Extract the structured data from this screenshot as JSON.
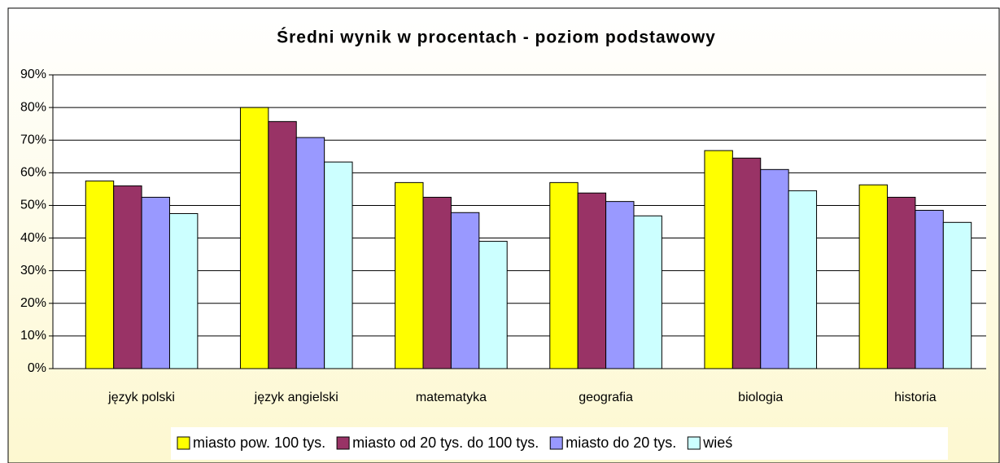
{
  "chart_data": {
    "type": "bar",
    "title": "Średni wynik w procentach - poziom podstawowy",
    "categories": [
      "język polski",
      "język angielski",
      "matematyka",
      "geografia",
      "biologia",
      "historia"
    ],
    "series": [
      {
        "name": "miasto pow. 100 tys.",
        "color": "#ffff00",
        "values": [
          57.5,
          80,
          57,
          57,
          66.8,
          56.3
        ]
      },
      {
        "name": "miasto od 20 tys. do 100 tys.",
        "color": "#993366",
        "values": [
          56,
          75.7,
          52.5,
          53.8,
          64.5,
          52.5
        ]
      },
      {
        "name": "miasto do 20 tys.",
        "color": "#9999ff",
        "values": [
          52.5,
          70.8,
          47.8,
          51.2,
          61,
          48.5
        ]
      },
      {
        "name": "wieś",
        "color": "#ccffff",
        "values": [
          47.5,
          63.3,
          39,
          46.8,
          54.5,
          44.8
        ]
      }
    ],
    "ylim": [
      0,
      90
    ],
    "yticks": [
      {
        "value": 0,
        "label": "0%"
      },
      {
        "value": 10,
        "label": "10%"
      },
      {
        "value": 20,
        "label": "20%"
      },
      {
        "value": 30,
        "label": "30%"
      },
      {
        "value": 40,
        "label": "40%"
      },
      {
        "value": 50,
        "label": "50%"
      },
      {
        "value": 60,
        "label": "60%"
      },
      {
        "value": 70,
        "label": "70%"
      },
      {
        "value": 80,
        "label": "80%"
      },
      {
        "value": 90,
        "label": "90%"
      }
    ],
    "grid": true,
    "legend": "bottom"
  }
}
